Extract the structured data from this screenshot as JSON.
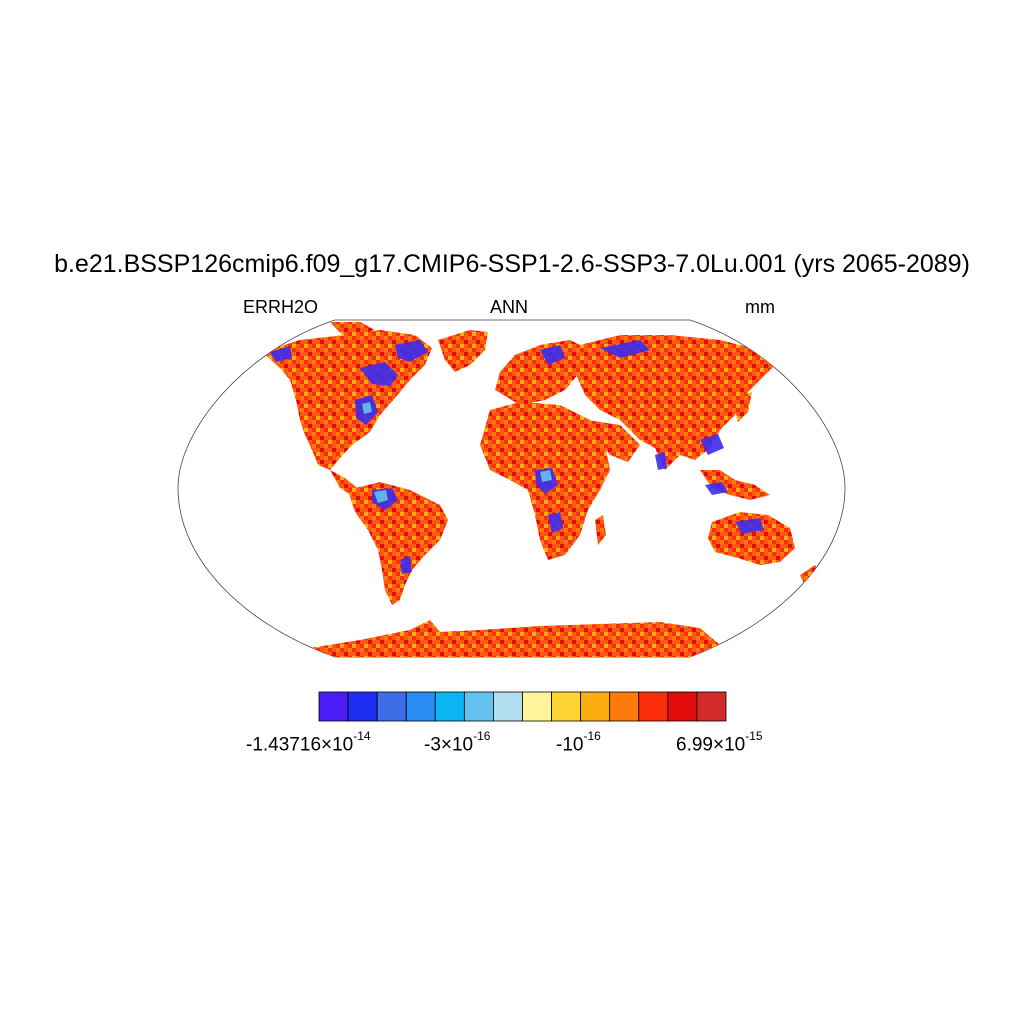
{
  "title": "b.e21.BSSP126cmip6.f09_g17.CMIP6-SSP1-2.6-SSP3-7.0Lu.001 (yrs 2065-2089)",
  "left_label": "ERRH2O",
  "center_label": "ANN",
  "right_label": "mm",
  "colorbar": {
    "colors": [
      "#4b1cf5",
      "#1f2cf2",
      "#3e6de8",
      "#2a8bf2",
      "#0ab4f5",
      "#63c3ee",
      "#b2dcef",
      "#fff59b",
      "#fcd532",
      "#fcad0f",
      "#fc7a0a",
      "#fc2d0a",
      "#e30a0a",
      "#d12b2b"
    ],
    "labels": [
      {
        "mantissa": "-1.43716×10",
        "exponent": "-14"
      },
      {
        "mantissa": "-3×10",
        "exponent": "-16"
      },
      {
        "mantissa": "-10",
        "exponent": "-16"
      },
      {
        "mantissa": "6.99×10",
        "exponent": "-15"
      }
    ]
  },
  "map": {
    "projection": "Robinson",
    "land_dominant_color": "#fc5a12",
    "negative_color": "#3b2cf0"
  }
}
